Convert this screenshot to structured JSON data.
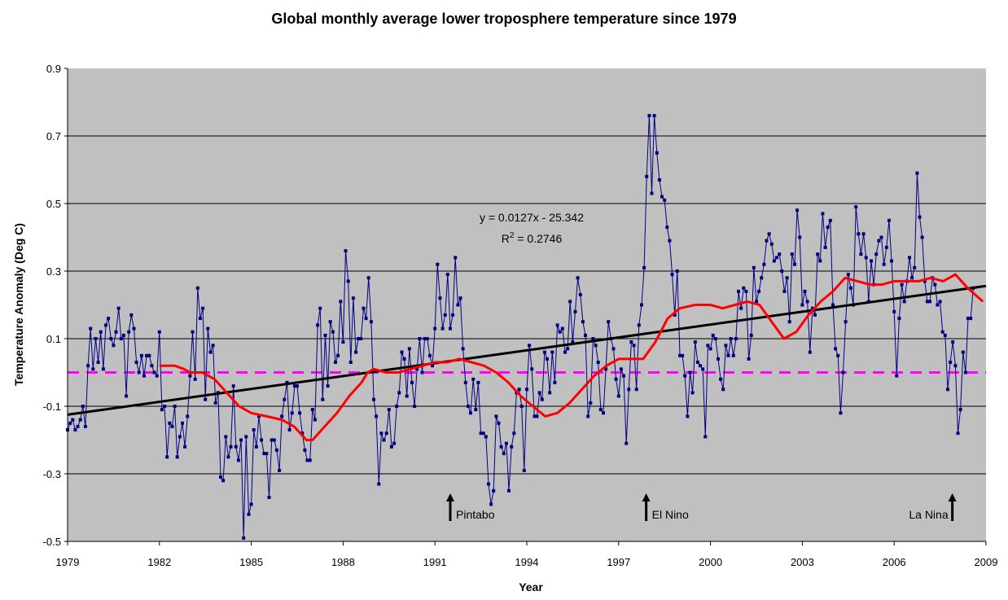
{
  "chart_data": {
    "type": "line",
    "title": "Global monthly average lower troposphere temperature since 1979",
    "xlabel": "Year",
    "ylabel": "Temperature Anomaly (Deg C)",
    "xlim": [
      1979,
      2009
    ],
    "ylim": [
      -0.5,
      0.9
    ],
    "x_ticks": [
      "1979",
      "1982",
      "1985",
      "1988",
      "1991",
      "1994",
      "1997",
      "2000",
      "2003",
      "2006",
      "2009"
    ],
    "y_ticks": [
      "0.9",
      "0.7",
      "0.5",
      "0.3",
      "0.1",
      "-0.1",
      "-0.3",
      "-0.5"
    ],
    "grid": true,
    "colors": {
      "plot_bg": "#c0c0c0",
      "monthly": "#000080",
      "smoothed": "#ff0000",
      "trend": "#000000",
      "zero_line": "#ff00ff"
    },
    "trend_equation": "y = 0.0127x - 25.342",
    "r_squared_prefix": "R",
    "r_squared_exp": "2",
    "r_squared_value": " = 0.2746",
    "annotations": [
      {
        "label": "Pintabo",
        "x": 1991.5,
        "side": "right"
      },
      {
        "label": "El Nino",
        "x": 1997.9,
        "side": "right"
      },
      {
        "label": "La Nina",
        "x": 2007.9,
        "side": "left"
      }
    ],
    "series": [
      {
        "name": "Monthly anomaly",
        "start": 1979.0,
        "step": 0.08333,
        "values": [
          -0.17,
          -0.15,
          -0.14,
          -0.17,
          -0.16,
          -0.14,
          -0.1,
          -0.16,
          0.02,
          0.13,
          0.01,
          0.1,
          0.03,
          0.12,
          0.01,
          0.14,
          0.16,
          0.1,
          0.08,
          0.12,
          0.19,
          0.1,
          0.11,
          -0.07,
          0.12,
          0.17,
          0.13,
          0.03,
          0.0,
          0.05,
          -0.01,
          0.05,
          0.05,
          0.02,
          0.0,
          -0.01,
          0.12,
          -0.11,
          -0.1,
          -0.25,
          -0.15,
          -0.16,
          -0.1,
          -0.25,
          -0.19,
          -0.15,
          -0.22,
          -0.13,
          -0.01,
          0.12,
          -0.02,
          0.25,
          0.16,
          0.19,
          -0.08,
          0.13,
          0.06,
          0.08,
          -0.09,
          -0.06,
          -0.31,
          -0.32,
          -0.19,
          -0.25,
          -0.22,
          -0.04,
          -0.22,
          -0.26,
          -0.2,
          -0.49,
          -0.19,
          -0.42,
          -0.39,
          -0.17,
          -0.22,
          -0.13,
          -0.2,
          -0.24,
          -0.24,
          -0.37,
          -0.2,
          -0.2,
          -0.23,
          -0.29,
          -0.13,
          -0.08,
          -0.03,
          -0.17,
          -0.12,
          -0.04,
          -0.04,
          -0.12,
          -0.18,
          -0.23,
          -0.26,
          -0.26,
          -0.11,
          -0.14,
          0.14,
          0.19,
          -0.08,
          0.11,
          -0.04,
          0.15,
          0.12,
          0.03,
          0.05,
          0.21,
          0.09,
          0.36,
          0.27,
          0.03,
          0.22,
          0.06,
          0.1,
          0.1,
          0.19,
          0.16,
          0.28,
          0.15,
          -0.08,
          -0.13,
          -0.33,
          -0.18,
          -0.2,
          -0.18,
          -0.11,
          -0.22,
          -0.21,
          -0.1,
          -0.06,
          0.06,
          0.04,
          -0.07,
          0.07,
          -0.03,
          -0.1,
          0.01,
          0.1,
          0.0,
          0.1,
          0.1,
          0.05,
          0.02,
          0.13,
          0.32,
          0.22,
          0.13,
          0.17,
          0.29,
          0.13,
          0.17,
          0.34,
          0.2,
          0.22,
          0.07,
          -0.03,
          -0.1,
          -0.12,
          -0.02,
          -0.11,
          -0.03,
          -0.18,
          -0.18,
          -0.19,
          -0.33,
          -0.39,
          -0.35,
          -0.13,
          -0.15,
          -0.22,
          -0.24,
          -0.21,
          -0.35,
          -0.22,
          -0.18,
          -0.06,
          -0.05,
          -0.1,
          -0.29,
          -0.05,
          0.08,
          0.01,
          -0.13,
          -0.13,
          -0.06,
          -0.08,
          0.06,
          0.04,
          -0.06,
          0.06,
          -0.03,
          0.14,
          0.12,
          0.13,
          0.06,
          0.07,
          0.21,
          0.09,
          0.18,
          0.28,
          0.23,
          0.15,
          0.11,
          -0.13,
          -0.09,
          0.1,
          0.08,
          0.03,
          -0.11,
          -0.12,
          0.01,
          0.15,
          0.1,
          0.07,
          -0.02,
          -0.07,
          0.01,
          -0.01,
          -0.21,
          -0.05,
          0.09,
          0.08,
          -0.05,
          0.14,
          0.2,
          0.31,
          0.58,
          0.76,
          0.53,
          0.76,
          0.65,
          0.57,
          0.52,
          0.51,
          0.43,
          0.39,
          0.29,
          0.17,
          0.3,
          0.05,
          0.05,
          -0.01,
          -0.13,
          0.0,
          -0.06,
          0.09,
          0.03,
          0.02,
          0.01,
          -0.19,
          0.08,
          0.07,
          0.11,
          0.1,
          0.04,
          -0.02,
          -0.05,
          0.08,
          0.05,
          0.1,
          0.05,
          0.1,
          0.24,
          0.19,
          0.25,
          0.24,
          0.04,
          0.11,
          0.31,
          0.21,
          0.24,
          0.28,
          0.32,
          0.39,
          0.41,
          0.38,
          0.33,
          0.34,
          0.35,
          0.3,
          0.24,
          0.28,
          0.15,
          0.35,
          0.32,
          0.48,
          0.4,
          0.2,
          0.24,
          0.21,
          0.06,
          0.19,
          0.17,
          0.35,
          0.33,
          0.47,
          0.37,
          0.43,
          0.45,
          0.2,
          0.07,
          0.05,
          -0.12,
          0.0,
          0.15,
          0.29,
          0.25,
          0.2,
          0.49,
          0.41,
          0.35,
          0.41,
          0.34,
          0.21,
          0.33,
          0.26,
          0.35,
          0.39,
          0.4,
          0.32,
          0.37,
          0.45,
          0.33,
          0.18,
          -0.01,
          0.16,
          0.26,
          0.21,
          0.27,
          0.34,
          0.28,
          0.31,
          0.59,
          0.46,
          0.4,
          0.27,
          0.21,
          0.21,
          0.28,
          0.26,
          0.2,
          0.21,
          0.12,
          0.11,
          -0.05,
          0.03,
          0.09,
          0.02,
          -0.18,
          -0.11,
          0.06,
          0.0,
          0.16,
          0.16,
          0.25
        ]
      },
      {
        "name": "Running mean",
        "x": [
          1982.0,
          1982.5,
          1982.8,
          1983.0,
          1983.4,
          1983.8,
          1984.2,
          1984.6,
          1985.0,
          1985.5,
          1986.0,
          1986.4,
          1986.8,
          1987.0,
          1987.4,
          1987.8,
          1988.2,
          1988.6,
          1988.8,
          1989.0,
          1989.4,
          1989.8,
          1990.2,
          1990.6,
          1991.0,
          1991.4,
          1991.8,
          1992.2,
          1992.6,
          1993.0,
          1993.4,
          1993.8,
          1994.2,
          1994.6,
          1995.0,
          1995.4,
          1995.8,
          1996.2,
          1996.6,
          1997.0,
          1997.4,
          1997.8,
          1998.2,
          1998.6,
          1999.0,
          1999.5,
          2000.0,
          2000.4,
          2000.8,
          2001.2,
          2001.6,
          2002.0,
          2002.4,
          2002.8,
          2003.2,
          2003.6,
          2004.0,
          2004.4,
          2004.8,
          2005.2,
          2005.6,
          2006.0,
          2006.4,
          2006.8,
          2007.2,
          2007.6,
          2008.0,
          2008.4,
          2008.9
        ],
        "values": [
          0.02,
          0.02,
          0.01,
          0.0,
          0.0,
          -0.02,
          -0.06,
          -0.1,
          -0.12,
          -0.13,
          -0.14,
          -0.16,
          -0.2,
          -0.2,
          -0.16,
          -0.12,
          -0.07,
          -0.03,
          0.0,
          0.01,
          0.0,
          0.0,
          0.01,
          0.02,
          0.03,
          0.03,
          0.04,
          0.03,
          0.02,
          0.0,
          -0.03,
          -0.07,
          -0.1,
          -0.13,
          -0.12,
          -0.09,
          -0.05,
          -0.01,
          0.02,
          0.04,
          0.04,
          0.04,
          0.09,
          0.16,
          0.19,
          0.2,
          0.2,
          0.19,
          0.2,
          0.21,
          0.2,
          0.15,
          0.1,
          0.12,
          0.17,
          0.21,
          0.24,
          0.28,
          0.27,
          0.26,
          0.26,
          0.27,
          0.27,
          0.27,
          0.28,
          0.27,
          0.29,
          0.25,
          0.21
        ]
      },
      {
        "name": "Linear trend",
        "x": [
          1979,
          2009
        ],
        "values": [
          -0.125,
          0.256
        ]
      },
      {
        "name": "Zero reference",
        "x": [
          1979,
          2009
        ],
        "values": [
          0.0,
          0.0
        ]
      }
    ]
  }
}
